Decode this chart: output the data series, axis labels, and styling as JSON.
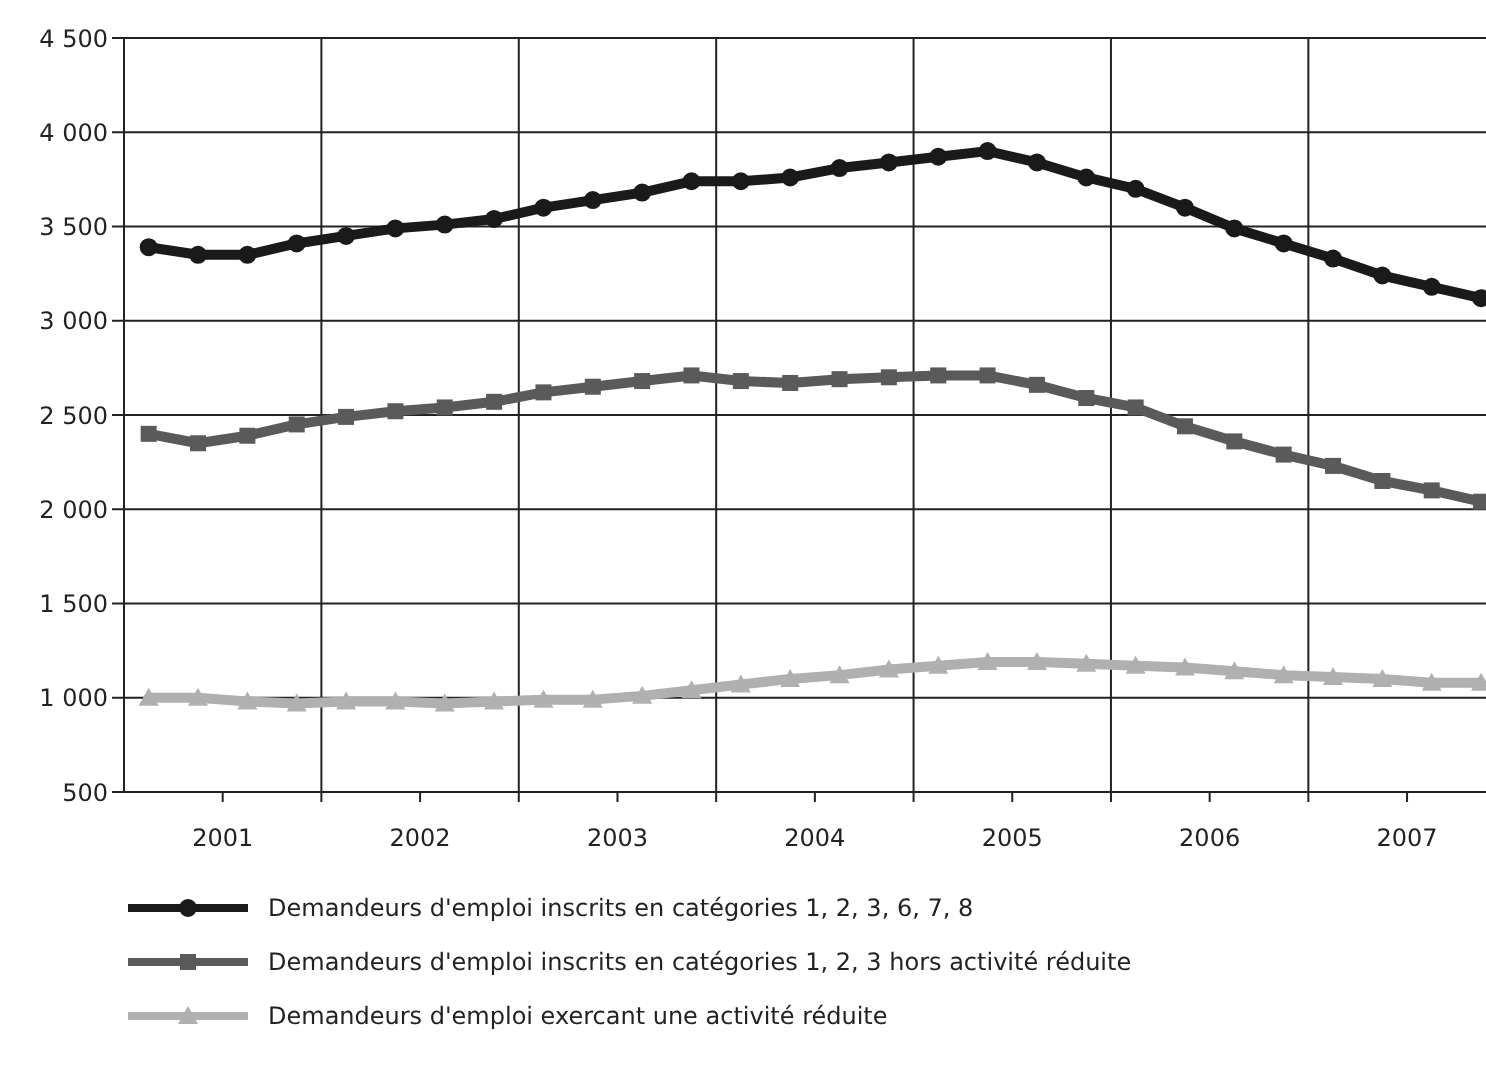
{
  "chart_data": {
    "type": "line",
    "x": [
      2000.625,
      2000.875,
      2001.125,
      2001.375,
      2001.625,
      2001.875,
      2002.125,
      2002.375,
      2002.625,
      2002.875,
      2003.125,
      2003.375,
      2003.625,
      2003.875,
      2004.125,
      2004.375,
      2004.625,
      2004.875,
      2005.125,
      2005.375,
      2005.625,
      2005.875,
      2006.125,
      2006.375,
      2006.625,
      2006.875,
      2007.125,
      2007.375
    ],
    "xlim": [
      2000.5,
      2007.4
    ],
    "xticks": [
      2001,
      {
        "value": 2001.5,
        "label": null
      },
      2002,
      {
        "value": 2002.5,
        "label": null
      },
      2003,
      {
        "value": 2003.5,
        "label": null
      },
      2004,
      {
        "value": 2004.5,
        "label": null
      },
      2005,
      {
        "value": 2005.5,
        "label": null
      },
      2006,
      {
        "value": 2006.5,
        "label": null
      },
      2007
    ],
    "ylim": [
      500,
      4500
    ],
    "yticks": [
      {
        "value": 500,
        "label": "500"
      },
      {
        "value": 1000,
        "label": "1 000"
      },
      {
        "value": 1500,
        "label": "1 500"
      },
      {
        "value": 2000,
        "label": "2 000"
      },
      {
        "value": 2500,
        "label": "2 500"
      },
      {
        "value": 3000,
        "label": "3 000"
      },
      {
        "value": 3500,
        "label": "3 500"
      },
      {
        "value": 4000,
        "label": "4 000"
      },
      {
        "value": 4500,
        "label": "4 500"
      }
    ],
    "grid": true,
    "legend": "bottom",
    "line_style": "solid",
    "series": [
      {
        "name": "Demandeurs d'emploi inscrits en catégories 1, 2, 3, 6, 7, 8",
        "color": "#1a1a1a",
        "marker": "circle",
        "values": [
          3390,
          3350,
          3350,
          3410,
          3450,
          3490,
          3510,
          3540,
          3600,
          3640,
          3680,
          3740,
          3740,
          3760,
          3810,
          3840,
          3870,
          3900,
          3840,
          3760,
          3700,
          3600,
          3490,
          3410,
          3330,
          3240,
          3180,
          3120
        ]
      },
      {
        "name": "Demandeurs d'emploi inscrits en catégories 1, 2, 3 hors activité réduite",
        "color": "#5a5a5a",
        "marker": "square",
        "values": [
          2400,
          2350,
          2390,
          2450,
          2490,
          2520,
          2540,
          2570,
          2620,
          2650,
          2680,
          2710,
          2680,
          2670,
          2690,
          2700,
          2710,
          2710,
          2660,
          2590,
          2540,
          2440,
          2360,
          2290,
          2230,
          2150,
          2100,
          2040
        ]
      },
      {
        "name": "Demandeurs d'emploi exercant une activité réduite",
        "color": "#b0b0b0",
        "marker": "triangle",
        "values": [
          1000,
          1000,
          980,
          970,
          980,
          980,
          970,
          980,
          990,
          990,
          1010,
          1040,
          1070,
          1100,
          1120,
          1150,
          1170,
          1190,
          1190,
          1180,
          1170,
          1160,
          1140,
          1120,
          1110,
          1100,
          1080,
          1080
        ]
      }
    ]
  }
}
